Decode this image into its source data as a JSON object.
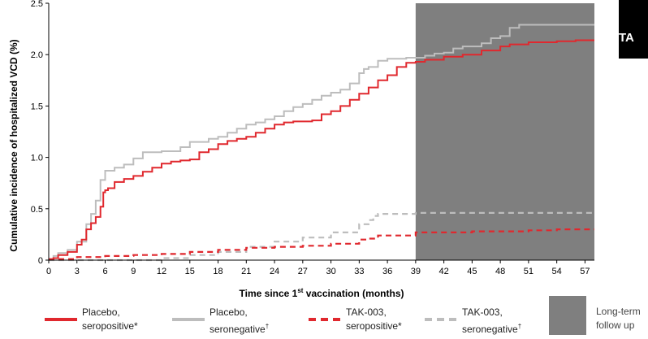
{
  "chart_data": {
    "type": "line",
    "title": "",
    "xlabel_main": "Time since 1",
    "xlabel_sup": "st",
    "xlabel_rest": " vaccination (months)",
    "ylabel": "Cumulative incidence of hospitalized VCD (%)",
    "xlim": [
      0,
      58
    ],
    "ylim": [
      0,
      2.5
    ],
    "x_ticks": [
      "0",
      "3",
      "6",
      "9",
      "12",
      "15",
      "18",
      "21",
      "24",
      "27",
      "30",
      "33",
      "36",
      "39",
      "42",
      "45",
      "48",
      "51",
      "54",
      "57"
    ],
    "y_ticks": [
      "0",
      "0.5",
      "1.0",
      "1.5",
      "2.0",
      "2.5"
    ],
    "y_tick_values": [
      0,
      0.5,
      1.0,
      1.5,
      2.0,
      2.5
    ],
    "x_tick_values": [
      0,
      3,
      6,
      9,
      12,
      15,
      18,
      21,
      24,
      27,
      30,
      33,
      36,
      39,
      42,
      45,
      48,
      51,
      54,
      57
    ],
    "shaded_region": {
      "x_start": 39,
      "x_end": 58,
      "color": "#7f7f7f",
      "label_line1": "Long-term",
      "label_line2": "follow up"
    },
    "series": [
      {
        "name_line1": "Placebo,",
        "name_line2": "seropositive",
        "name_mark": "*",
        "color": "#e0282e",
        "style": "solid",
        "x": [
          0,
          0.5,
          1,
          2,
          3,
          3.5,
          4,
          4.5,
          5,
          5.5,
          5.8,
          6,
          6.3,
          7,
          8,
          9,
          10,
          11,
          12,
          13,
          14,
          15,
          16,
          17,
          18,
          19,
          20,
          21,
          22,
          23,
          24,
          25,
          26,
          27,
          28,
          29,
          30,
          31,
          32,
          33,
          34,
          35,
          36,
          37,
          38,
          39,
          40,
          42,
          44,
          46,
          48,
          49,
          51,
          54,
          56,
          58
        ],
        "y": [
          0,
          0.02,
          0.05,
          0.08,
          0.15,
          0.2,
          0.3,
          0.36,
          0.42,
          0.52,
          0.66,
          0.68,
          0.7,
          0.76,
          0.79,
          0.82,
          0.86,
          0.9,
          0.94,
          0.96,
          0.97,
          0.98,
          1.05,
          1.08,
          1.13,
          1.16,
          1.18,
          1.2,
          1.24,
          1.28,
          1.32,
          1.34,
          1.35,
          1.35,
          1.36,
          1.42,
          1.45,
          1.5,
          1.56,
          1.62,
          1.68,
          1.75,
          1.8,
          1.88,
          1.92,
          1.93,
          1.95,
          1.98,
          2.0,
          2.04,
          2.08,
          2.1,
          2.12,
          2.13,
          2.14,
          2.14
        ]
      },
      {
        "name_line1": "Placebo,",
        "name_line2": "seronegative",
        "name_mark": "†",
        "color": "#bdbdbd",
        "style": "solid",
        "x": [
          0,
          0.5,
          1,
          2,
          3,
          4,
          4.5,
          5,
          5.5,
          6,
          7,
          8,
          9,
          10,
          12,
          14,
          15,
          17,
          18,
          19,
          20,
          21,
          22,
          23,
          24,
          25,
          26,
          27,
          28,
          29,
          30,
          31,
          32,
          33,
          33.5,
          34,
          35,
          36,
          37,
          38,
          39,
          40,
          41,
          42,
          43,
          44,
          46,
          47,
          48,
          49,
          50,
          51,
          53,
          55,
          58
        ],
        "y": [
          0,
          0.04,
          0.07,
          0.1,
          0.18,
          0.35,
          0.45,
          0.58,
          0.78,
          0.87,
          0.9,
          0.93,
          0.99,
          1.05,
          1.06,
          1.1,
          1.15,
          1.18,
          1.2,
          1.24,
          1.28,
          1.32,
          1.34,
          1.37,
          1.4,
          1.45,
          1.49,
          1.52,
          1.56,
          1.6,
          1.63,
          1.66,
          1.72,
          1.82,
          1.86,
          1.88,
          1.94,
          1.96,
          1.96,
          1.97,
          1.97,
          1.99,
          2.01,
          2.02,
          2.06,
          2.08,
          2.11,
          2.16,
          2.18,
          2.26,
          2.29,
          2.29,
          2.29,
          2.29,
          2.29
        ]
      },
      {
        "name_line1": "TAK-003,",
        "name_line2": "seropositive",
        "name_mark": "*",
        "color": "#e0282e",
        "style": "dashed",
        "x": [
          0,
          3,
          6,
          9,
          12,
          15,
          18,
          21,
          24,
          27,
          30,
          33,
          34,
          35,
          36,
          39,
          42,
          45,
          48,
          51,
          54,
          57,
          58
        ],
        "y": [
          0.01,
          0.03,
          0.04,
          0.05,
          0.06,
          0.08,
          0.1,
          0.12,
          0.13,
          0.14,
          0.16,
          0.2,
          0.21,
          0.24,
          0.24,
          0.27,
          0.27,
          0.28,
          0.28,
          0.29,
          0.3,
          0.3,
          0.3
        ]
      },
      {
        "name_line1": "TAK-003,",
        "name_line2": "seronegative",
        "name_mark": "†",
        "color": "#bdbdbd",
        "style": "dashed",
        "x": [
          0,
          3,
          6,
          9,
          12,
          15,
          18,
          21,
          24,
          27,
          30,
          33,
          34,
          34.5,
          35,
          36,
          39,
          42,
          45,
          48,
          51,
          54,
          57,
          58
        ],
        "y": [
          0,
          0,
          0,
          0,
          0.02,
          0.05,
          0.08,
          0.13,
          0.18,
          0.22,
          0.27,
          0.35,
          0.39,
          0.43,
          0.45,
          0.45,
          0.46,
          0.46,
          0.46,
          0.46,
          0.46,
          0.46,
          0.46,
          0.46
        ]
      }
    ]
  },
  "corner_tag": {
    "text": "TA"
  }
}
